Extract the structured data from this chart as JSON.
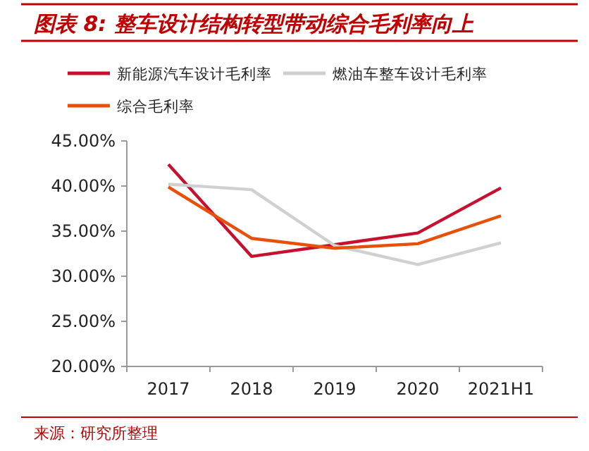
{
  "chart_data": {
    "type": "line",
    "title": "图表 8: 整车设计结构转型带动综合毛利率向上",
    "categories": [
      "2017",
      "2018",
      "2019",
      "2020",
      "2021H1"
    ],
    "series": [
      {
        "name": "新能源汽车设计毛利率",
        "color": "#c8102e",
        "values": [
          42.4,
          32.2,
          33.5,
          34.8,
          39.8
        ]
      },
      {
        "name": "燃油车整车设计毛利率",
        "color": "#d0d0d0",
        "values": [
          40.2,
          39.6,
          33.4,
          31.3,
          33.7
        ]
      },
      {
        "name": "综合毛利率",
        "color": "#e8500a",
        "values": [
          39.9,
          34.2,
          33.1,
          33.6,
          36.7
        ]
      }
    ],
    "ylim": [
      20,
      45
    ],
    "yticks": [
      {
        "value": 20,
        "label": "20.00%"
      },
      {
        "value": 25,
        "label": "25.00%"
      },
      {
        "value": 30,
        "label": "30.00%"
      },
      {
        "value": 35,
        "label": "35.00%"
      },
      {
        "value": 40,
        "label": "40.00%"
      },
      {
        "value": 45,
        "label": "45.00%"
      }
    ],
    "grid": false,
    "legend": "top",
    "marker": "none",
    "line_style": "solid",
    "annotations": [
      "来源：研究所整理"
    ]
  }
}
